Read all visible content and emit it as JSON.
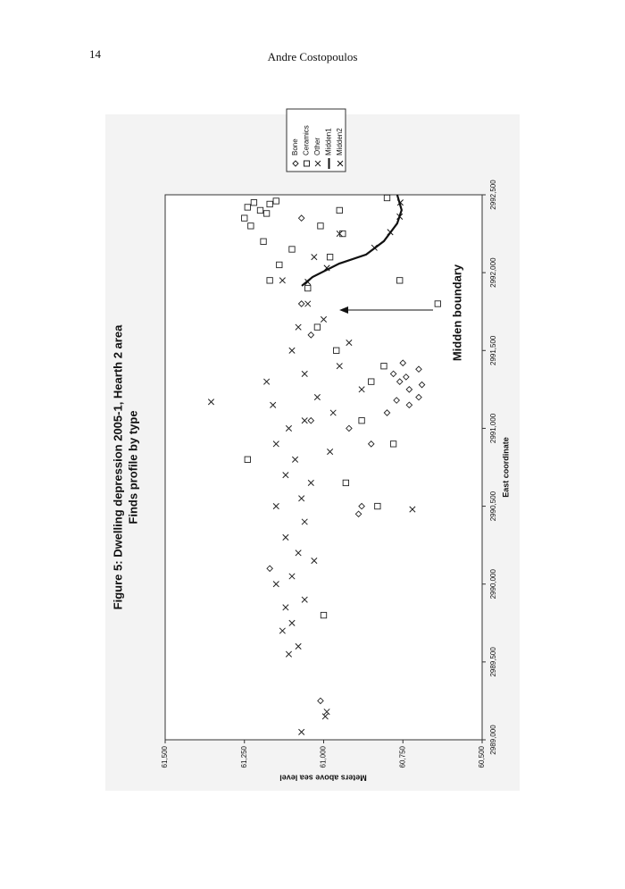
{
  "header": {
    "page_number": "14",
    "running_head": "Andre Costopoulos"
  },
  "chart_data": {
    "type": "scatter",
    "title": "Figure 5: Dwelling depression 2005-1, Hearth 2 area",
    "subtitle": "Finds profile by type",
    "x_label": "East coordinate",
    "y_label": "Meters above sea level",
    "annotation": "Midden boundary",
    "xlim": [
      2989000,
      2992500
    ],
    "xticks": [
      {
        "value": 2989000,
        "label": "2989,000"
      },
      {
        "value": 2989500,
        "label": "2989,500"
      },
      {
        "value": 2990000,
        "label": "2990,000"
      },
      {
        "value": 2990500,
        "label": "2990,500"
      },
      {
        "value": 2991000,
        "label": "2991,000"
      },
      {
        "value": 2991500,
        "label": "2991,500"
      },
      {
        "value": 2992000,
        "label": "2992,000"
      },
      {
        "value": 2992500,
        "label": "2992,500"
      }
    ],
    "ylim": [
      60500,
      61500
    ],
    "yticks": [
      {
        "value": 60500,
        "label": "60,500"
      },
      {
        "value": 60750,
        "label": "60,750"
      },
      {
        "value": 61000,
        "label": "61,000"
      },
      {
        "value": 61250,
        "label": "61,250"
      },
      {
        "value": 61500,
        "label": "61,500"
      }
    ],
    "grid": false,
    "series": [
      {
        "name": "Bone",
        "color": "#222222",
        "marker": "diamond",
        "x": [
          2989250,
          2991300,
          2991250,
          2991350,
          2991200,
          2991280,
          2991330,
          2991180,
          2991420,
          2991380,
          2991150,
          2991100,
          2990900,
          2990500,
          2990450,
          2990100,
          2991000,
          2991600,
          2991800,
          2992350,
          2991050
        ],
        "values": [
          61010,
          60760,
          60730,
          60780,
          60700,
          60690,
          60740,
          60770,
          60750,
          60700,
          60730,
          60800,
          60850,
          60880,
          60890,
          61170,
          60920,
          61040,
          61070,
          61070,
          61040
        ]
      },
      {
        "name": "Ceramics",
        "color": "#222222",
        "marker": "square",
        "x": [
          2992450,
          2992420,
          2992400,
          2992380,
          2992350,
          2992440,
          2992460,
          2992300,
          2992200,
          2992150,
          2992050,
          2991950,
          2991900,
          2992100,
          2992300,
          2992250,
          2992400,
          2992480,
          2991650,
          2991500,
          2991300,
          2991400,
          2991050,
          2990800,
          2990650,
          2990500,
          2989800,
          2991800,
          2990900,
          2991950
        ],
        "values": [
          61220,
          61240,
          61200,
          61180,
          61250,
          61170,
          61150,
          61230,
          61190,
          61100,
          61140,
          61170,
          61050,
          60980,
          61010,
          60940,
          60950,
          60800,
          61020,
          60960,
          60850,
          60810,
          60880,
          61240,
          60930,
          60830,
          61000,
          60640,
          60780,
          60760
        ]
      },
      {
        "name": "Other",
        "color": "#222222",
        "marker": "x",
        "x": [
          2989050,
          2989150,
          2989180,
          2989550,
          2989600,
          2989700,
          2989750,
          2989850,
          2989900,
          2990000,
          2990050,
          2990150,
          2990200,
          2990300,
          2990400,
          2990500,
          2990550,
          2990650,
          2990700,
          2990800,
          2990850,
          2990900,
          2991000,
          2991050,
          2991100,
          2991150,
          2991200,
          2991250,
          2991300,
          2991350,
          2991400,
          2991500,
          2991550,
          2991650,
          2991700,
          2991800,
          2991950,
          2992100,
          2992250,
          2991170,
          2990480
        ],
        "values": [
          61070,
          60995,
          60990,
          61110,
          61080,
          61130,
          61100,
          61120,
          61060,
          61150,
          61100,
          61030,
          61080,
          61120,
          61060,
          61150,
          61070,
          61040,
          61120,
          61090,
          60980,
          61150,
          61110,
          61060,
          60970,
          61160,
          61020,
          60880,
          61180,
          61060,
          60950,
          61100,
          60920,
          61080,
          61000,
          61050,
          61130,
          61030,
          60950,
          61355,
          60720
        ]
      },
      {
        "name": "Midden1",
        "color": "#111111",
        "marker": "line",
        "x": [
          2991915,
          2991972,
          2992058,
          2992116,
          2992202,
          2992316,
          2992402,
          2992500
        ],
        "values": [
          61069,
          61035,
          60951,
          60866,
          60810,
          60768,
          60754,
          60768
        ]
      },
      {
        "name": "Midden2",
        "color": "#111111",
        "marker": "x",
        "x": [
          2991940,
          2992030,
          2992160,
          2992260,
          2992360,
          2992450
        ],
        "values": [
          61050,
          60990,
          60840,
          60790,
          60760,
          60758
        ]
      }
    ]
  }
}
